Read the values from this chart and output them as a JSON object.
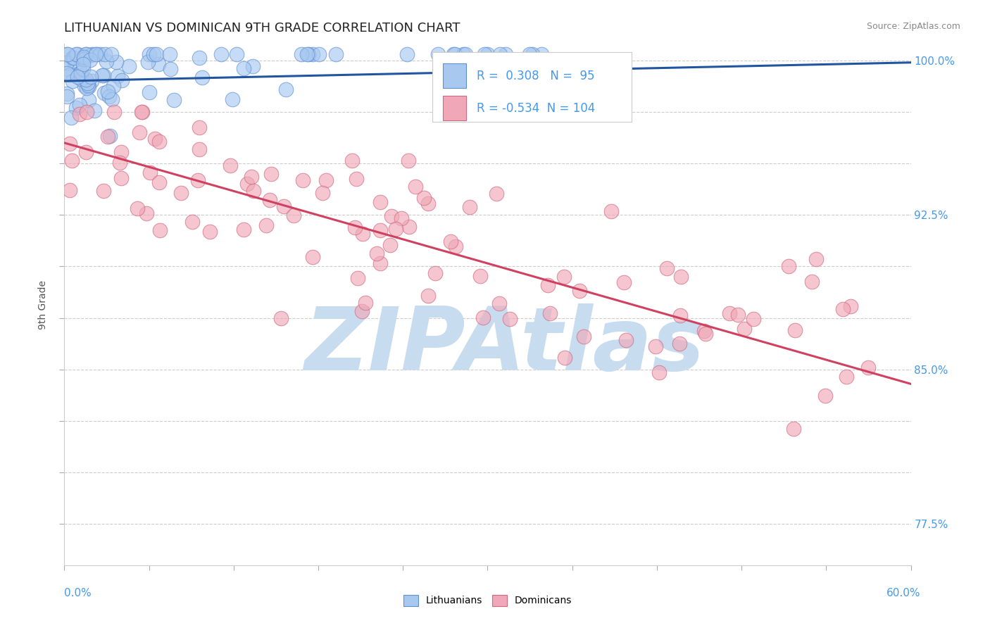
{
  "title": "LITHUANIAN VS DOMINICAN 9TH GRADE CORRELATION CHART",
  "source_text": "Source: ZipAtlas.com",
  "ylabel_label": "9th Grade",
  "x_min": 0.0,
  "x_max": 0.6,
  "y_min": 0.755,
  "y_max": 1.008,
  "yticks": [
    0.775,
    0.8,
    0.825,
    0.85,
    0.875,
    0.9,
    0.925,
    0.95,
    0.975,
    1.0
  ],
  "ytick_labels": [
    "77.5%",
    "",
    "",
    "85.0%",
    "",
    "",
    "92.5%",
    "",
    "",
    "100.0%"
  ],
  "r_blue": 0.308,
  "n_blue": 95,
  "r_pink": -0.534,
  "n_pink": 104,
  "legend_blue": "Lithuanians",
  "legend_pink": "Dominicans",
  "blue_color": "#A8C8F0",
  "blue_edge_color": "#6090D0",
  "blue_line_color": "#2255A0",
  "pink_color": "#F0A8B8",
  "pink_edge_color": "#D06880",
  "pink_line_color": "#D04060",
  "background_color": "#FFFFFF",
  "watermark_text": "ZIPAtlas",
  "watermark_color": "#C8DCF0",
  "title_fontsize": 13,
  "axis_label_color": "#555555",
  "tick_label_color": "#4499EE",
  "source_fontsize": 9,
  "legend_fontsize": 10,
  "blue_line_y0": 0.99,
  "blue_line_y1": 0.999,
  "pink_line_y0": 0.96,
  "pink_line_y1": 0.843
}
